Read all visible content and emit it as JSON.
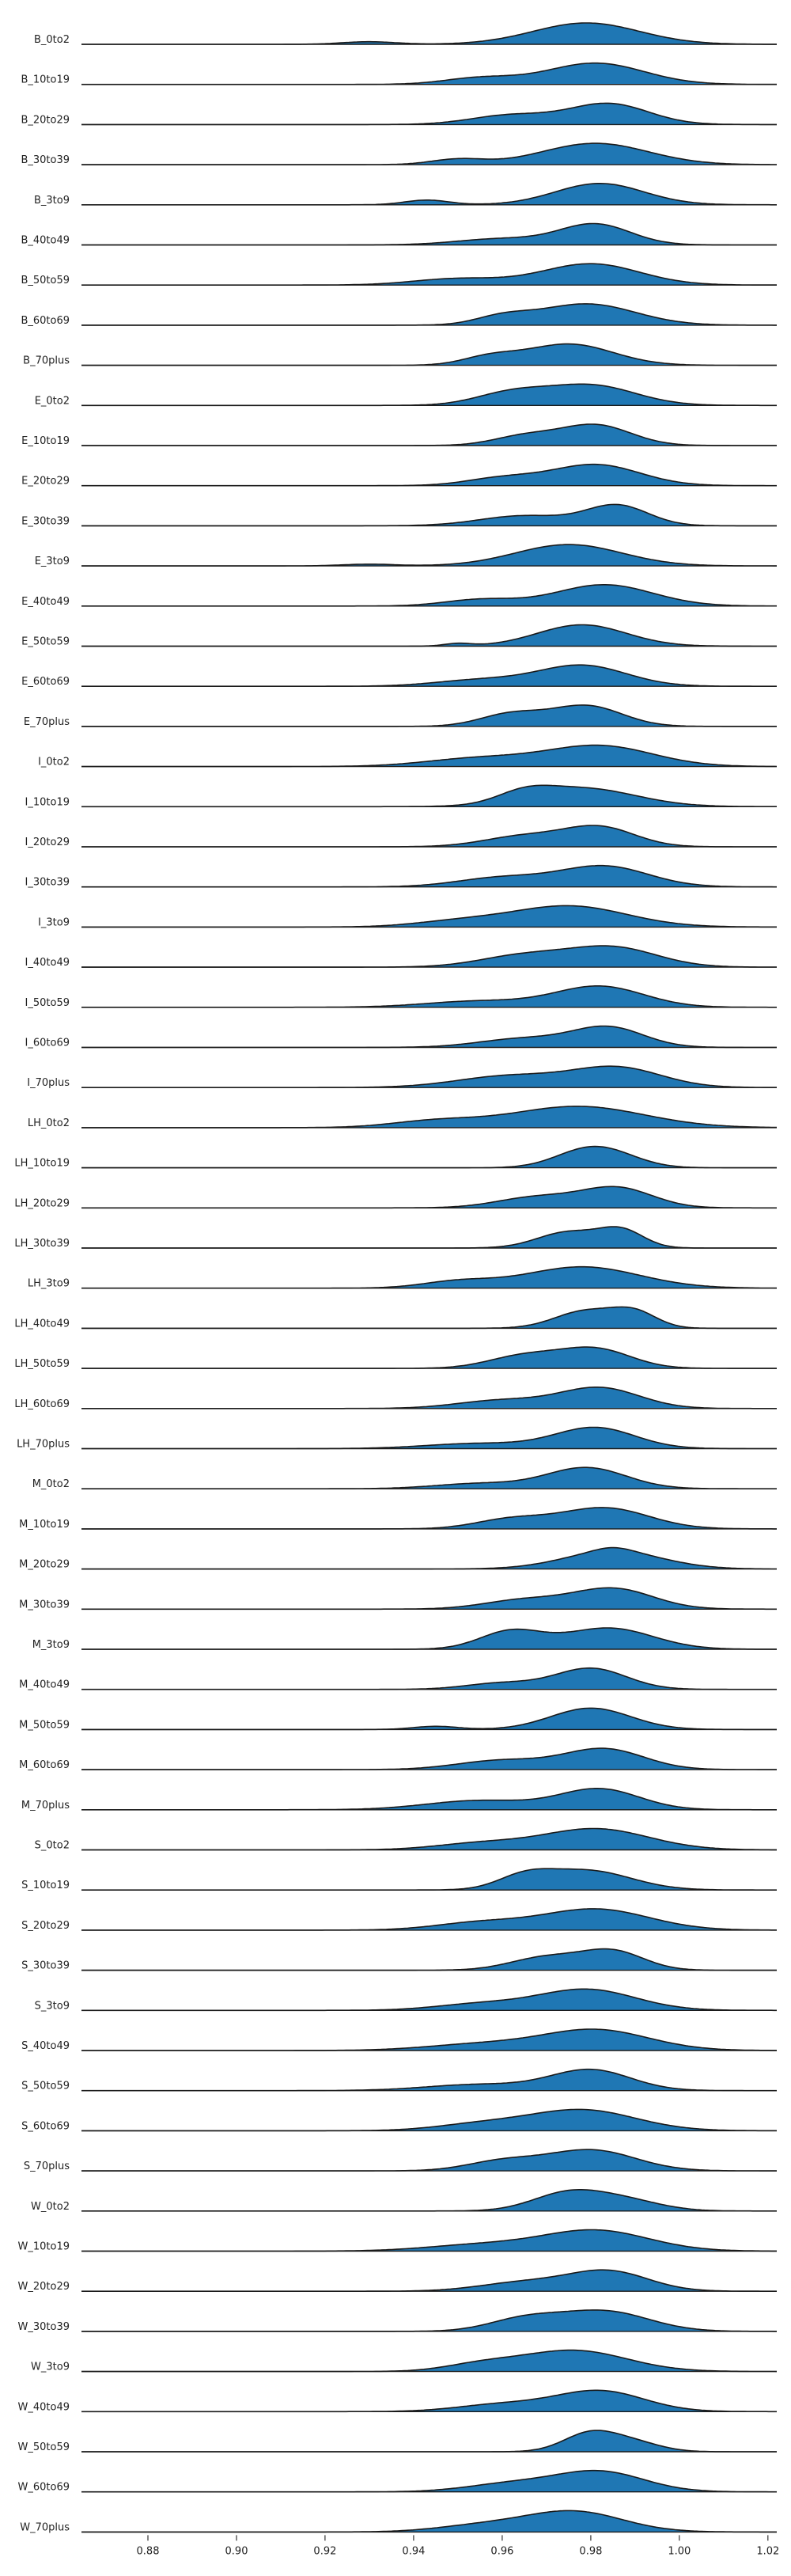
{
  "chart_data": {
    "type": "ridgeline",
    "xlim": [
      0.865,
      1.022
    ],
    "xticks": [
      0.88,
      0.9,
      0.92,
      0.94,
      0.96,
      0.98,
      1.0,
      1.02
    ],
    "xtick_labels": [
      "0.88",
      "0.90",
      "0.92",
      "0.94",
      "0.96",
      "0.98",
      "1.00",
      "1.02"
    ],
    "fill_color": "#1f77b4",
    "line_color": "#1a1a1a",
    "grid": false,
    "series": [
      {
        "name": "B_0to2",
        "peaks": [
          [
            0.979,
            0.012,
            1.0
          ],
          [
            0.93,
            0.006,
            0.12
          ]
        ]
      },
      {
        "name": "B_10to19",
        "peaks": [
          [
            0.981,
            0.011,
            1.0
          ],
          [
            0.955,
            0.008,
            0.3
          ]
        ]
      },
      {
        "name": "B_20to29",
        "peaks": [
          [
            0.984,
            0.009,
            1.0
          ],
          [
            0.962,
            0.009,
            0.45
          ]
        ]
      },
      {
        "name": "B_30to39",
        "peaks": [
          [
            0.981,
            0.012,
            1.0
          ],
          [
            0.95,
            0.006,
            0.25
          ]
        ]
      },
      {
        "name": "B_3to9",
        "peaks": [
          [
            0.982,
            0.01,
            1.0
          ],
          [
            0.943,
            0.005,
            0.22
          ]
        ]
      },
      {
        "name": "B_40to49",
        "peaks": [
          [
            0.981,
            0.008,
            1.0
          ],
          [
            0.96,
            0.01,
            0.3
          ]
        ]
      },
      {
        "name": "B_50to59",
        "peaks": [
          [
            0.98,
            0.011,
            1.0
          ],
          [
            0.95,
            0.01,
            0.3
          ]
        ]
      },
      {
        "name": "B_60to69",
        "peaks": [
          [
            0.979,
            0.011,
            1.0
          ],
          [
            0.96,
            0.006,
            0.35
          ]
        ]
      },
      {
        "name": "B_70plus",
        "peaks": [
          [
            0.975,
            0.01,
            1.0
          ],
          [
            0.957,
            0.006,
            0.35
          ]
        ]
      },
      {
        "name": "E_0to2",
        "peaks": [
          [
            0.98,
            0.01,
            1.0
          ],
          [
            0.962,
            0.008,
            0.6
          ]
        ]
      },
      {
        "name": "E_10to19",
        "peaks": [
          [
            0.981,
            0.008,
            1.0
          ],
          [
            0.965,
            0.007,
            0.45
          ]
        ]
      },
      {
        "name": "E_20to29",
        "peaks": [
          [
            0.981,
            0.01,
            1.0
          ],
          [
            0.96,
            0.008,
            0.35
          ]
        ]
      },
      {
        "name": "E_30to39",
        "peaks": [
          [
            0.986,
            0.007,
            1.0
          ],
          [
            0.965,
            0.01,
            0.5
          ]
        ]
      },
      {
        "name": "E_3to9",
        "peaks": [
          [
            0.975,
            0.012,
            1.0
          ],
          [
            0.93,
            0.006,
            0.08
          ]
        ]
      },
      {
        "name": "E_40to49",
        "peaks": [
          [
            0.983,
            0.011,
            1.0
          ],
          [
            0.955,
            0.008,
            0.3
          ]
        ]
      },
      {
        "name": "E_50to59",
        "peaks": [
          [
            0.978,
            0.01,
            1.0
          ],
          [
            0.95,
            0.003,
            0.12
          ]
        ]
      },
      {
        "name": "E_60to69",
        "peaks": [
          [
            0.978,
            0.01,
            1.0
          ],
          [
            0.955,
            0.01,
            0.3
          ]
        ]
      },
      {
        "name": "E_70plus",
        "peaks": [
          [
            0.979,
            0.008,
            1.0
          ],
          [
            0.962,
            0.007,
            0.6
          ]
        ]
      },
      {
        "name": "I_0to2",
        "peaks": [
          [
            0.982,
            0.012,
            1.0
          ],
          [
            0.955,
            0.012,
            0.4
          ]
        ]
      },
      {
        "name": "I_10to19",
        "peaks": [
          [
            0.978,
            0.012,
            1.0
          ],
          [
            0.965,
            0.006,
            0.5
          ]
        ]
      },
      {
        "name": "I_20to29",
        "peaks": [
          [
            0.982,
            0.008,
            1.0
          ],
          [
            0.965,
            0.009,
            0.55
          ]
        ]
      },
      {
        "name": "I_30to39",
        "peaks": [
          [
            0.983,
            0.01,
            1.0
          ],
          [
            0.96,
            0.01,
            0.45
          ]
        ]
      },
      {
        "name": "I_3to9",
        "peaks": [
          [
            0.975,
            0.013,
            1.0
          ],
          [
            0.95,
            0.01,
            0.25
          ]
        ]
      },
      {
        "name": "I_40to49",
        "peaks": [
          [
            0.985,
            0.01,
            1.0
          ],
          [
            0.965,
            0.01,
            0.6
          ]
        ]
      },
      {
        "name": "I_50to59",
        "peaks": [
          [
            0.982,
            0.01,
            1.0
          ],
          [
            0.955,
            0.012,
            0.3
          ]
        ]
      },
      {
        "name": "I_60to69",
        "peaks": [
          [
            0.984,
            0.008,
            1.0
          ],
          [
            0.965,
            0.01,
            0.45
          ]
        ]
      },
      {
        "name": "I_70plus",
        "peaks": [
          [
            0.986,
            0.01,
            1.0
          ],
          [
            0.962,
            0.012,
            0.6
          ]
        ]
      },
      {
        "name": "LH_0to2",
        "peaks": [
          [
            0.977,
            0.015,
            1.0
          ],
          [
            0.945,
            0.01,
            0.3
          ]
        ]
      },
      {
        "name": "LH_10to19",
        "peaks": [
          [
            0.978,
            0.007,
            1.0
          ],
          [
            0.985,
            0.007,
            0.8
          ]
        ]
      },
      {
        "name": "LH_20to29",
        "peaks": [
          [
            0.986,
            0.008,
            1.0
          ],
          [
            0.968,
            0.009,
            0.55
          ]
        ]
      },
      {
        "name": "LH_30to39",
        "peaks": [
          [
            0.987,
            0.005,
            0.95
          ],
          [
            0.975,
            0.007,
            0.9
          ]
        ]
      },
      {
        "name": "LH_3to9",
        "peaks": [
          [
            0.978,
            0.013,
            1.0
          ],
          [
            0.95,
            0.008,
            0.3
          ]
        ]
      },
      {
        "name": "LH_40to49",
        "peaks": [
          [
            0.979,
            0.007,
            1.0
          ],
          [
            0.99,
            0.005,
            0.85
          ]
        ]
      },
      {
        "name": "LH_50to59",
        "peaks": [
          [
            0.981,
            0.008,
            1.0
          ],
          [
            0.965,
            0.008,
            0.65
          ]
        ]
      },
      {
        "name": "LH_60to69",
        "peaks": [
          [
            0.982,
            0.009,
            1.0
          ],
          [
            0.96,
            0.01,
            0.4
          ]
        ]
      },
      {
        "name": "LH_70plus",
        "peaks": [
          [
            0.981,
            0.009,
            1.0
          ],
          [
            0.955,
            0.012,
            0.25
          ]
        ]
      },
      {
        "name": "M_0to2",
        "peaks": [
          [
            0.979,
            0.009,
            1.0
          ],
          [
            0.955,
            0.01,
            0.25
          ]
        ]
      },
      {
        "name": "M_10to19",
        "peaks": [
          [
            0.983,
            0.01,
            1.0
          ],
          [
            0.962,
            0.008,
            0.45
          ]
        ]
      },
      {
        "name": "M_20to29",
        "peaks": [
          [
            0.985,
            0.011,
            1.0
          ],
          [
            0.985,
            0.004,
            0.2
          ]
        ]
      },
      {
        "name": "M_30to39",
        "peaks": [
          [
            0.985,
            0.009,
            1.0
          ],
          [
            0.965,
            0.009,
            0.45
          ]
        ]
      },
      {
        "name": "M_3to9",
        "peaks": [
          [
            0.984,
            0.01,
            0.95
          ],
          [
            0.962,
            0.007,
            0.8
          ]
        ]
      },
      {
        "name": "M_40to49",
        "peaks": [
          [
            0.98,
            0.008,
            1.0
          ],
          [
            0.96,
            0.008,
            0.3
          ]
        ]
      },
      {
        "name": "M_50to59",
        "peaks": [
          [
            0.98,
            0.009,
            1.0
          ],
          [
            0.945,
            0.005,
            0.15
          ]
        ]
      },
      {
        "name": "M_60to69",
        "peaks": [
          [
            0.983,
            0.009,
            1.0
          ],
          [
            0.96,
            0.01,
            0.45
          ]
        ]
      },
      {
        "name": "M_70plus",
        "peaks": [
          [
            0.982,
            0.009,
            1.0
          ],
          [
            0.955,
            0.012,
            0.45
          ]
        ]
      },
      {
        "name": "S_0to2",
        "peaks": [
          [
            0.981,
            0.012,
            1.0
          ],
          [
            0.955,
            0.01,
            0.3
          ]
        ]
      },
      {
        "name": "S_10to19",
        "peaks": [
          [
            0.979,
            0.01,
            1.0
          ],
          [
            0.965,
            0.006,
            0.6
          ]
        ]
      },
      {
        "name": "S_20to29",
        "peaks": [
          [
            0.981,
            0.012,
            1.0
          ],
          [
            0.955,
            0.01,
            0.35
          ]
        ]
      },
      {
        "name": "S_30to39",
        "peaks": [
          [
            0.985,
            0.007,
            1.0
          ],
          [
            0.97,
            0.008,
            0.7
          ]
        ]
      },
      {
        "name": "S_3to9",
        "peaks": [
          [
            0.979,
            0.011,
            1.0
          ],
          [
            0.955,
            0.01,
            0.3
          ]
        ]
      },
      {
        "name": "S_40to49",
        "peaks": [
          [
            0.981,
            0.012,
            1.0
          ],
          [
            0.955,
            0.012,
            0.3
          ]
        ]
      },
      {
        "name": "S_50to59",
        "peaks": [
          [
            0.98,
            0.009,
            1.0
          ],
          [
            0.955,
            0.012,
            0.3
          ]
        ]
      },
      {
        "name": "S_60to69",
        "peaks": [
          [
            0.978,
            0.012,
            1.0
          ],
          [
            0.955,
            0.01,
            0.3
          ]
        ]
      },
      {
        "name": "S_70plus",
        "peaks": [
          [
            0.98,
            0.01,
            1.0
          ],
          [
            0.96,
            0.008,
            0.45
          ]
        ]
      },
      {
        "name": "W_0to2",
        "peaks": [
          [
            0.975,
            0.008,
            1.0
          ],
          [
            0.988,
            0.008,
            0.55
          ]
        ]
      },
      {
        "name": "W_10to19",
        "peaks": [
          [
            0.981,
            0.012,
            1.0
          ],
          [
            0.955,
            0.012,
            0.3
          ]
        ]
      },
      {
        "name": "W_20to29",
        "peaks": [
          [
            0.984,
            0.009,
            1.0
          ],
          [
            0.965,
            0.01,
            0.45
          ]
        ]
      },
      {
        "name": "W_30to39",
        "peaks": [
          [
            0.983,
            0.01,
            1.0
          ],
          [
            0.965,
            0.008,
            0.6
          ]
        ]
      },
      {
        "name": "W_3to9",
        "peaks": [
          [
            0.976,
            0.012,
            1.0
          ],
          [
            0.955,
            0.008,
            0.3
          ]
        ]
      },
      {
        "name": "W_40to49",
        "peaks": [
          [
            0.982,
            0.01,
            1.0
          ],
          [
            0.96,
            0.01,
            0.35
          ]
        ]
      },
      {
        "name": "W_50to59",
        "peaks": [
          [
            0.98,
            0.006,
            1.0
          ],
          [
            0.99,
            0.006,
            0.45
          ]
        ]
      },
      {
        "name": "W_60to69",
        "peaks": [
          [
            0.982,
            0.01,
            1.0
          ],
          [
            0.962,
            0.01,
            0.4
          ]
        ]
      },
      {
        "name": "W_70plus",
        "peaks": [
          [
            0.976,
            0.011,
            1.0
          ],
          [
            0.955,
            0.01,
            0.3
          ]
        ]
      }
    ]
  }
}
